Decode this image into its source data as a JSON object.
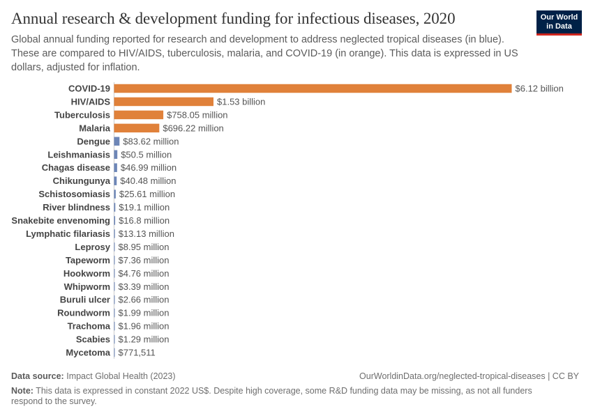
{
  "header": {
    "title": "Annual research & development funding for infectious diseases, 2020",
    "subtitle": "Global annual funding reported for research and development to address neglected tropical diseases (in blue). These are compared to HIV/AIDS, tuberculosis, malaria, and COVID-19 (in orange). This data is expressed in US dollars, adjusted for inflation.",
    "logo_line1": "Our World",
    "logo_line2": "in Data"
  },
  "colors": {
    "orange": "#e0813a",
    "blue": "#6d86b7",
    "logo_bg": "#002147",
    "logo_accent": "#ce261e"
  },
  "chart_data": {
    "type": "bar",
    "orientation": "horizontal",
    "title": "Annual research & development funding for infectious diseases, 2020",
    "unit": "US dollars",
    "categories": [
      "COVID-19",
      "HIV/AIDS",
      "Tuberculosis",
      "Malaria",
      "Dengue",
      "Leishmaniasis",
      "Chagas disease",
      "Chikungunya",
      "Schistosomiasis",
      "River blindness",
      "Snakebite envenoming",
      "Lymphatic filariasis",
      "Leprosy",
      "Tapeworm",
      "Hookworm",
      "Whipworm",
      "Buruli ulcer",
      "Roundworm",
      "Trachoma",
      "Scabies",
      "Mycetoma"
    ],
    "values": [
      6120000000,
      1530000000,
      758050000,
      696220000,
      83620000,
      50500000,
      46990000,
      40480000,
      25610000,
      19100000,
      16800000,
      13130000,
      8950000,
      7360000,
      4760000,
      3390000,
      2660000,
      1990000,
      1960000,
      1290000,
      771511
    ],
    "value_labels": [
      "$6.12 billion",
      "$1.53 billion",
      "$758.05 million",
      "$696.22 million",
      "$83.62 million",
      "$50.5 million",
      "$46.99 million",
      "$40.48 million",
      "$25.61 million",
      "$19.1 million",
      "$16.8 million",
      "$13.13 million",
      "$8.95 million",
      "$7.36 million",
      "$4.76 million",
      "$3.39 million",
      "$2.66 million",
      "$1.99 million",
      "$1.96 million",
      "$1.29 million",
      "$771,511"
    ],
    "groups": [
      "orange",
      "orange",
      "orange",
      "orange",
      "blue",
      "blue",
      "blue",
      "blue",
      "blue",
      "blue",
      "blue",
      "blue",
      "blue",
      "blue",
      "blue",
      "blue",
      "blue",
      "blue",
      "blue",
      "blue",
      "blue"
    ],
    "xlim": [
      0,
      6120000000
    ],
    "grid": false,
    "legend": "none"
  },
  "footer": {
    "source_label": "Data source:",
    "source_text": "Impact Global Health (2023)",
    "url_text": "OurWorldinData.org/neglected-tropical-diseases | CC BY",
    "note_label": "Note:",
    "note_text": "This data is expressed in constant 2022 US$. Despite high coverage, some R&D funding data may be missing, as not all funders respond to the survey."
  }
}
